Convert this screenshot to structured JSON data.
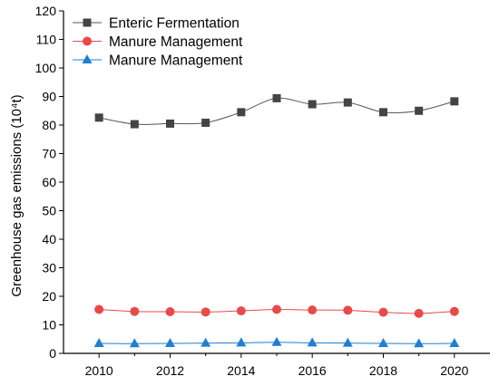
{
  "chart_data": {
    "type": "line",
    "title": "",
    "xlabel": "",
    "ylabel": "Greenhouse gas emissions (10⁴t)",
    "x": [
      2010,
      2011,
      2012,
      2013,
      2014,
      2015,
      2016,
      2017,
      2018,
      2019,
      2020
    ],
    "xlim": [
      2009,
      2021
    ],
    "ylim": [
      0,
      120
    ],
    "xticks": [
      "2010",
      "2012",
      "2014",
      "2016",
      "2018",
      "2020"
    ],
    "yticks": [
      "0",
      "10",
      "20",
      "30",
      "40",
      "50",
      "60",
      "70",
      "80",
      "90",
      "100",
      "110",
      "120"
    ],
    "grid": false,
    "legend_position": "top-left",
    "series": [
      {
        "name": "Enteric Fermentation",
        "marker": "square",
        "color": "#555555",
        "markerColor": "#444444",
        "values": [
          82.6,
          80.3,
          80.5,
          80.8,
          84.5,
          89.4,
          87.3,
          87.9,
          84.5,
          85.0,
          88.3
        ]
      },
      {
        "name": "Manure Management",
        "marker": "circle",
        "color": "#e84a4a",
        "markerColor": "#e84a4a",
        "values": [
          15.4,
          14.7,
          14.6,
          14.5,
          14.9,
          15.4,
          15.2,
          15.1,
          14.4,
          14.0,
          14.7
        ]
      },
      {
        "name": "Manure Management",
        "marker": "triangle",
        "color": "#1f7fd1",
        "markerColor": "#1f7fd1",
        "values": [
          3.5,
          3.4,
          3.5,
          3.6,
          3.7,
          3.9,
          3.7,
          3.6,
          3.5,
          3.4,
          3.5
        ]
      }
    ]
  }
}
